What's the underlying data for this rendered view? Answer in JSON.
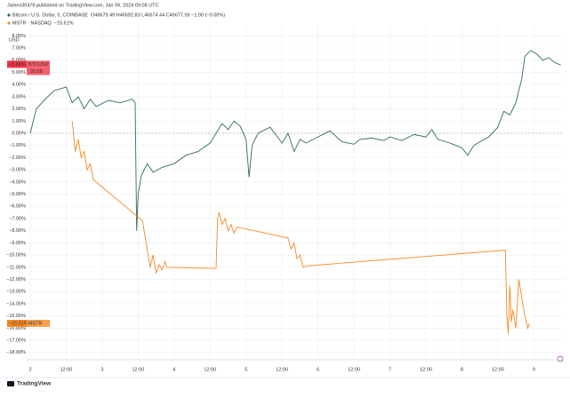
{
  "chart_data": {
    "type": "line",
    "attribution": "James30478 published on TradingView.com, Jan 09, 2024 09:08 UTC",
    "unit_label": "USD",
    "footer": "TradingView",
    "grid": true,
    "xlim": [
      -1.2,
      178
    ],
    "ylim": [
      -18.6,
      8.9
    ],
    "xticks": [
      {
        "value": 0,
        "label": "2"
      },
      {
        "value": 12,
        "label": "12:00"
      },
      {
        "value": 24,
        "label": "3"
      },
      {
        "value": 36,
        "label": "12:00"
      },
      {
        "value": 48,
        "label": "4"
      },
      {
        "value": 60,
        "label": "12:00"
      },
      {
        "value": 72,
        "label": "5"
      },
      {
        "value": 84,
        "label": "12:00"
      },
      {
        "value": 96,
        "label": "6"
      },
      {
        "value": 108,
        "label": "12:00"
      },
      {
        "value": 120,
        "label": "7"
      },
      {
        "value": 132,
        "label": "12:00"
      },
      {
        "value": 144,
        "label": "8"
      },
      {
        "value": 156,
        "label": "12:00"
      },
      {
        "value": 168,
        "label": "9"
      }
    ],
    "yticks": [
      {
        "value": 8,
        "label": "8.00%"
      },
      {
        "value": 7,
        "label": "7.00%"
      },
      {
        "value": 6,
        "label": "6.00%"
      },
      {
        "value": 5,
        "label": "5.00%"
      },
      {
        "value": 4,
        "label": "4.00%"
      },
      {
        "value": 3,
        "label": "3.00%"
      },
      {
        "value": 2,
        "label": "2.00%"
      },
      {
        "value": 1,
        "label": "1.00%"
      },
      {
        "value": 0,
        "label": "0.00%"
      },
      {
        "value": -1,
        "label": "−1.00%"
      },
      {
        "value": -2,
        "label": "−2.00%"
      },
      {
        "value": -3,
        "label": "−3.00%"
      },
      {
        "value": -4,
        "label": "−4.00%"
      },
      {
        "value": -5,
        "label": "−5.00%"
      },
      {
        "value": -6,
        "label": "−6.00%"
      },
      {
        "value": -7,
        "label": "−7.00%"
      },
      {
        "value": -8,
        "label": "−8.00%"
      },
      {
        "value": -9,
        "label": "−9.00%"
      },
      {
        "value": -10,
        "label": "−10.00%"
      },
      {
        "value": -11,
        "label": "−11.00%"
      },
      {
        "value": -12,
        "label": "−12.00%"
      },
      {
        "value": -13,
        "label": "−13.00%"
      },
      {
        "value": -14,
        "label": "−14.00%"
      },
      {
        "value": -15,
        "label": "−15.00%"
      },
      {
        "value": -16,
        "label": "−16.00%"
      },
      {
        "value": -17,
        "label": "−17.00%"
      },
      {
        "value": -18,
        "label": "−18.00%"
      }
    ],
    "series": [
      {
        "name": "Bitcoin / U.S. Dollar, 5, COINBASE",
        "legend_value": "O46679.49 H46692.83 L46674.44 C46677.59 −1.90 (−0.00%)",
        "color": "#2f6e4f",
        "badge_color": "#f23645",
        "symbol": "BTCUSD",
        "countdown": "35:58",
        "last": {
          "value": 5.66,
          "label": "+5.66%"
        },
        "x": [
          0,
          2,
          5,
          8,
          12,
          14,
          16,
          18,
          20,
          22,
          26,
          30,
          34,
          35,
          35.5,
          36,
          37,
          39,
          41,
          44,
          48,
          52,
          56,
          60,
          62,
          64,
          66,
          68,
          70,
          72,
          73,
          74,
          76,
          80,
          84,
          86,
          88,
          90,
          92,
          96,
          100,
          104,
          108,
          110,
          114,
          118,
          120,
          124,
          128,
          132,
          134,
          136,
          140,
          144,
          146,
          148,
          150,
          153,
          156,
          158,
          160,
          162,
          164,
          165,
          167,
          169,
          171,
          173,
          175,
          177
        ],
        "values": [
          0,
          2.0,
          2.8,
          3.5,
          3.8,
          2.5,
          3.0,
          2.0,
          2.8,
          2.2,
          2.7,
          2.5,
          2.8,
          2.5,
          -8.0,
          -5.0,
          -3.5,
          -2.5,
          -3.2,
          -2.8,
          -2.5,
          -1.8,
          -1.5,
          -0.8,
          0,
          0.8,
          0.3,
          1.0,
          0.6,
          -0.5,
          -3.6,
          -1.0,
          0,
          0.5,
          -0.8,
          0,
          -1.5,
          -0.5,
          -0.8,
          -0.3,
          0.2,
          -0.7,
          -0.9,
          -0.5,
          -0.4,
          -0.6,
          -0.3,
          -0.6,
          -0.1,
          -0.3,
          0.3,
          -0.5,
          -0.8,
          -1.2,
          -1.8,
          -1.0,
          -0.7,
          -0.3,
          0.5,
          1.8,
          1.5,
          2.5,
          4.5,
          6.3,
          6.8,
          6.5,
          6.0,
          6.2,
          5.8,
          5.6
        ]
      },
      {
        "name": "MSTR · NASDAQ",
        "legend_value": "−15.61%",
        "color": "#f5891f",
        "badge_color": "#f5891f",
        "symbol": "MSTR",
        "last": {
          "value": -15.61,
          "label": "−15.61%"
        },
        "x": [
          14,
          15,
          16,
          17,
          18,
          19,
          20,
          21,
          21.5,
          37.5,
          38,
          39,
          40,
          41,
          42,
          43,
          44,
          45,
          45.5,
          62,
          62.5,
          63,
          64,
          65,
          66,
          67,
          68,
          69,
          86,
          87,
          88,
          89,
          90,
          91,
          92,
          158.5,
          159,
          159.5,
          160,
          160.5,
          161,
          162,
          163,
          164,
          165,
          166,
          166.5
        ],
        "values": [
          1.0,
          -1.5,
          -0.5,
          -2.0,
          -1.5,
          -3.0,
          -2.5,
          -3.8,
          -3.9,
          -7.2,
          -8.0,
          -9.5,
          -11.0,
          -10.0,
          -11.5,
          -10.8,
          -11.2,
          -10.5,
          -11.0,
          -11.1,
          -7.0,
          -6.5,
          -7.5,
          -7.0,
          -8.0,
          -7.5,
          -8.2,
          -7.7,
          -8.6,
          -9.5,
          -9.0,
          -10.3,
          -10.0,
          -11.0,
          -10.9,
          -9.6,
          -15.0,
          -16.5,
          -12.5,
          -15.5,
          -14.5,
          -16.0,
          -12.0,
          -13.5,
          -15.0,
          -16.0,
          -15.6
        ]
      }
    ]
  }
}
